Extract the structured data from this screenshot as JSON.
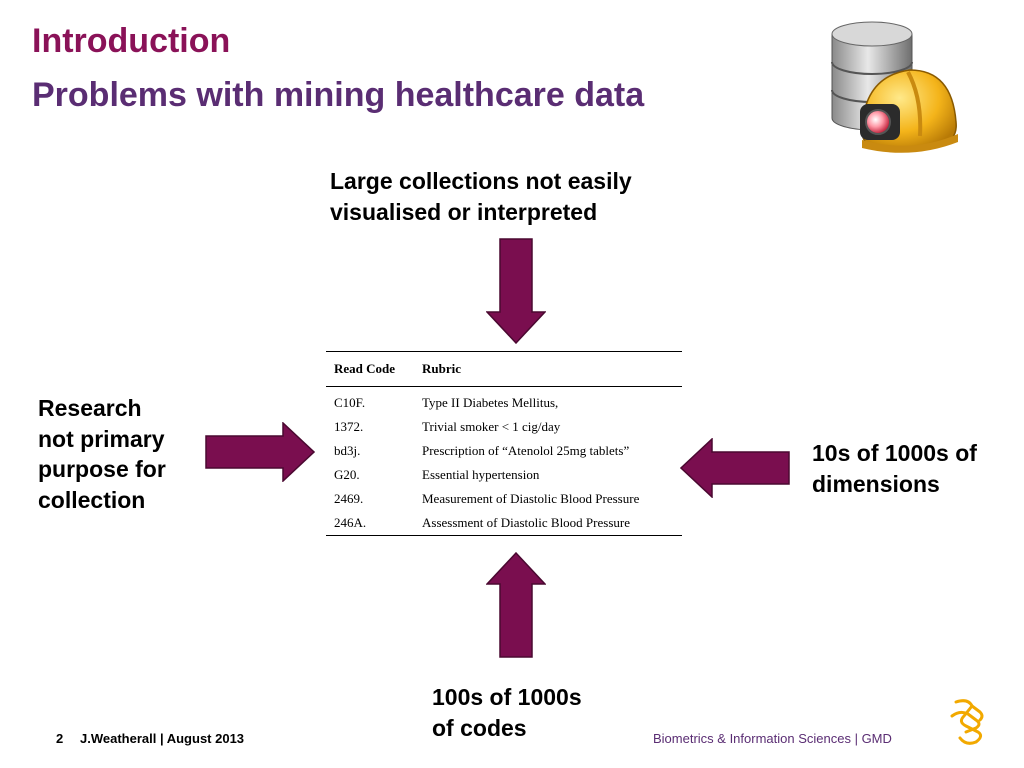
{
  "slide": {
    "title": "Introduction",
    "subtitle": "Problems with mining healthcare data"
  },
  "callouts": {
    "top": [
      "Large collections not easily",
      "visualised or interpreted"
    ],
    "left": [
      "Research",
      "not primary",
      "purpose for",
      "collection"
    ],
    "right": [
      "10s of 1000s of",
      "dimensions"
    ],
    "bottom": [
      "100s of 1000s",
      "of codes"
    ]
  },
  "table": {
    "headers": [
      "Read Code",
      "Rubric"
    ],
    "rows": [
      [
        "C10F.",
        "Type II Diabetes Mellitus,"
      ],
      [
        "1372.",
        "Trivial smoker < 1 cig/day"
      ],
      [
        "bd3j.",
        "Prescription of “Atenolol 25mg tablets”"
      ],
      [
        "G20.",
        "Essential hypertension"
      ],
      [
        "2469.",
        "Measurement of Diastolic Blood Pressure"
      ],
      [
        "246A.",
        "Assessment of Diastolic Blood Pressure"
      ]
    ]
  },
  "footer": {
    "page_number": "2",
    "author_date": "J.Weatherall | August 2013",
    "organisation": "Biometrics & Information Sciences | GMD"
  },
  "colors": {
    "title": "#8a1258",
    "subtitle": "#5a2d73",
    "arrow_fill": "#7a0e4f",
    "arrow_stroke": "#4a0830",
    "footer_org": "#5a2d73"
  },
  "icons": {
    "header_logo": "database-miner-helmet-icon",
    "footer_logo": "astrazeneca-logo-icon"
  }
}
